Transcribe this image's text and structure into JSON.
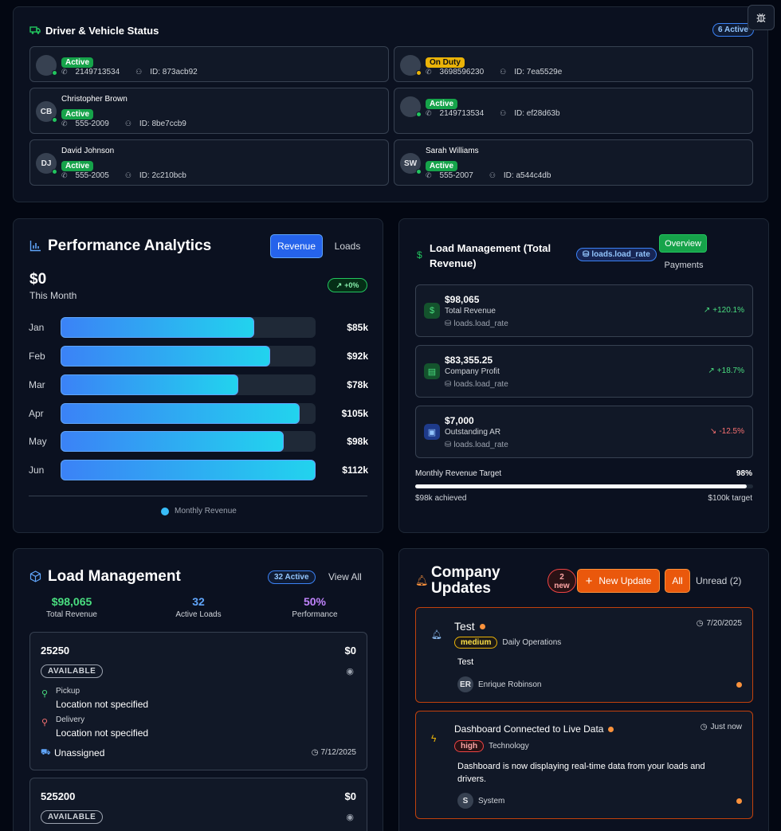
{
  "driver_status": {
    "title": "Driver & Vehicle Status",
    "active_badge": "6 Active",
    "drivers": [
      {
        "name": "",
        "initials": "",
        "status": "Active",
        "phone": "2149713534",
        "id_label": "ID: 873acb92"
      },
      {
        "name": "",
        "initials": "",
        "status": "On Duty",
        "phone": "3698596230",
        "id_label": "ID: 7ea5529e"
      },
      {
        "name": "Christopher Brown",
        "initials": "CB",
        "status": "Active",
        "phone": "555-2009",
        "id_label": "ID: 8be7ccb9"
      },
      {
        "name": "",
        "initials": "",
        "status": "Active",
        "phone": "2149713534",
        "id_label": "ID: ef28d63b"
      },
      {
        "name": "David Johnson",
        "initials": "DJ",
        "status": "Active",
        "phone": "555-2005",
        "id_label": "ID: 2c210bcb"
      },
      {
        "name": "Sarah Williams",
        "initials": "SW",
        "status": "Active",
        "phone": "555-2007",
        "id_label": "ID: a544c4db"
      }
    ]
  },
  "performance": {
    "title": "Performance Analytics",
    "tabs": [
      "Revenue",
      "Loads"
    ],
    "amount": "$0",
    "period": "This Month",
    "change": "+0%",
    "legend": "Monthly Revenue",
    "bars": [
      {
        "month": "Jan",
        "value": 85,
        "label": "$85k"
      },
      {
        "month": "Feb",
        "value": 92,
        "label": "$92k"
      },
      {
        "month": "Mar",
        "value": 78,
        "label": "$78k"
      },
      {
        "month": "Apr",
        "value": 105,
        "label": "$105k"
      },
      {
        "month": "May",
        "value": 98,
        "label": "$98k"
      },
      {
        "month": "Jun",
        "value": 112,
        "label": "$112k"
      }
    ],
    "bar_max": 112
  },
  "load_revenue": {
    "title_line1": "Load Management (Total",
    "title_line2": "Revenue)",
    "source_badge": "loads.load_rate",
    "tabs": [
      "Overview",
      "Payments"
    ],
    "metrics": [
      {
        "value": "$98,065",
        "label": "Total Revenue",
        "source": "loads.load_rate",
        "change": "+120.1%"
      },
      {
        "value": "$83,355.25",
        "label": "Company Profit",
        "source": "loads.load_rate",
        "change": "+18.7%"
      },
      {
        "value": "$7,000",
        "label": "Outstanding AR",
        "source": "loads.load_rate",
        "change": "-12.5%"
      }
    ],
    "target_label": "Monthly Revenue Target",
    "target_percent": "98%",
    "target_fraction": 0.98,
    "achieved": "$98k achieved",
    "target": "$100k target"
  },
  "load_management": {
    "title": "Load Management",
    "active_badge": "32 Active",
    "view_all": "View All",
    "stats": [
      {
        "value": "$98,065",
        "label": "Total Revenue"
      },
      {
        "value": "32",
        "label": "Active Loads"
      },
      {
        "value": "50%",
        "label": "Performance"
      }
    ],
    "loads": [
      {
        "number": "25250",
        "amount": "$0",
        "status": "AVAILABLE",
        "pickup_label": "Pickup",
        "pickup": "Location not specified",
        "delivery_label": "Delivery",
        "delivery": "Location not specified",
        "driver": "Unassigned",
        "date": "7/12/2025"
      },
      {
        "number": "525200",
        "amount": "$0",
        "status": "AVAILABLE"
      }
    ]
  },
  "company_updates": {
    "title_line1": "Company",
    "title_line2": "Updates",
    "new_badge_line1": "2",
    "new_badge_line2": "new",
    "new_update_button": "New Update",
    "filter_all": "All",
    "filter_unread": "Unread (2)",
    "updates": [
      {
        "title": "Test",
        "time": "7/20/2025",
        "priority": "medium",
        "category": "Daily Operations",
        "body": "Test",
        "author_initials": "ER",
        "author": "Enrique Robinson"
      },
      {
        "title": "Dashboard Connected to Live Data",
        "time": "Just now",
        "priority": "high",
        "category": "Technology",
        "body": "Dashboard is now displaying real-time data from your loads and drivers.",
        "author_initials": "S",
        "author": "System"
      }
    ]
  },
  "colors": {
    "accent_blue": "#2563eb",
    "accent_orange": "#ea580c",
    "success": "#22c55e",
    "warning": "#eab308",
    "danger": "#f87171"
  }
}
